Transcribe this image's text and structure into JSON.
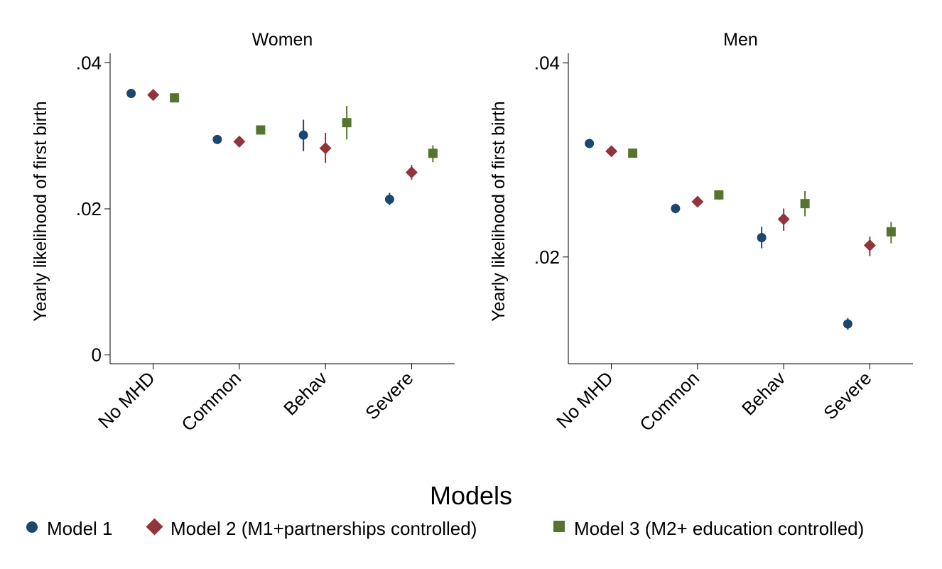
{
  "chart_data": [
    {
      "type": "scatter",
      "title": "Women",
      "ylabel": "Yearly likelihood of first birth",
      "categories": [
        "No MHD",
        "Common",
        "Behav",
        "Severe"
      ],
      "yticks": [
        0,
        0.02,
        0.04
      ],
      "ytick_labels": [
        "0",
        ".02",
        ".04"
      ],
      "ylim": [
        -0.0012,
        0.0413
      ],
      "grid": false,
      "series": [
        {
          "name": "Model 1",
          "values": [
            0.0358,
            0.0295,
            0.0301,
            0.0213
          ],
          "ci_low": [
            0.0356,
            0.0293,
            0.0279,
            0.0205
          ],
          "ci_high": [
            0.036,
            0.0297,
            0.0322,
            0.0222
          ]
        },
        {
          "name": "Model 2 (M1+partnerships controlled)",
          "values": [
            0.0356,
            0.0292,
            0.0283,
            0.025
          ],
          "ci_low": [
            0.0354,
            0.029,
            0.0263,
            0.024
          ],
          "ci_high": [
            0.0358,
            0.0294,
            0.0304,
            0.026
          ]
        },
        {
          "name": "Model 3 (M2+ education controlled)",
          "values": [
            0.0352,
            0.0308,
            0.0318,
            0.0276
          ],
          "ci_low": [
            0.035,
            0.0306,
            0.0295,
            0.0264
          ],
          "ci_high": [
            0.0354,
            0.031,
            0.0341,
            0.0287
          ]
        }
      ]
    },
    {
      "type": "scatter",
      "title": "Men",
      "ylabel": "Yearly likelihood of first birth",
      "categories": [
        "No MHD",
        "Common",
        "Behav",
        "Severe"
      ],
      "yticks": [
        0.02,
        0.04
      ],
      "ytick_labels": [
        ".02",
        ".04"
      ],
      "ylim": [
        0.009,
        0.041
      ],
      "grid": false,
      "series": [
        {
          "name": "Model 1",
          "values": [
            0.0317,
            0.025,
            0.022,
            0.0131
          ],
          "ci_low": [
            0.0315,
            0.0245,
            0.0209,
            0.0125
          ],
          "ci_high": [
            0.0319,
            0.0255,
            0.0231,
            0.0137
          ]
        },
        {
          "name": "Model 2 (M1+partnerships controlled)",
          "values": [
            0.0309,
            0.0257,
            0.0239,
            0.0212
          ],
          "ci_low": [
            0.0307,
            0.0254,
            0.0227,
            0.0201
          ],
          "ci_high": [
            0.0311,
            0.026,
            0.025,
            0.0221
          ]
        },
        {
          "name": "Model 3 (M2+ education controlled)",
          "values": [
            0.0307,
            0.0264,
            0.0255,
            0.0226
          ],
          "ci_low": [
            0.0305,
            0.0259,
            0.0242,
            0.0214
          ],
          "ci_high": [
            0.0309,
            0.0269,
            0.0268,
            0.0236
          ]
        }
      ]
    }
  ],
  "legend": {
    "title": "Models",
    "placement": "bottom",
    "items": [
      {
        "label": "Model 1",
        "marker": "circle",
        "color": "#1a476f"
      },
      {
        "label": "Model 2 (M1+partnerships controlled)",
        "marker": "diamond",
        "color": "#90353b"
      },
      {
        "label": "Model 3 (M2+ education controlled)",
        "marker": "square",
        "color": "#55752f"
      }
    ]
  }
}
